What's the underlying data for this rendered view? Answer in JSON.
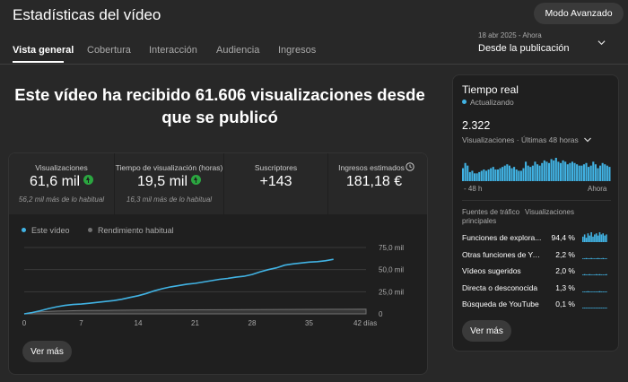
{
  "header": {
    "title": "Estadísticas del vídeo",
    "advanced_button": "Modo Avanzado"
  },
  "tabs": [
    {
      "label": "Vista general",
      "active": true
    },
    {
      "label": "Cobertura",
      "active": false
    },
    {
      "label": "Interacción",
      "active": false
    },
    {
      "label": "Audiencia",
      "active": false
    },
    {
      "label": "Ingresos",
      "active": false
    }
  ],
  "date_range": {
    "small": "18 abr 2025 - Ahora",
    "main": "Desde la publicación"
  },
  "headline": "Este vídeo ha recibido 61.606 visualizaciones desde que se publicó",
  "metrics": [
    {
      "label": "Visualizaciones",
      "value": "61,6 mil",
      "trend": "up",
      "sub": "56,2 mil más de lo habitual"
    },
    {
      "label": "Tiempo de visualización (horas)",
      "value": "19,5 mil",
      "trend": "up",
      "sub": "16,3 mil más de lo habitual"
    },
    {
      "label": "Suscriptores",
      "value": "+143",
      "trend": "",
      "sub": ""
    },
    {
      "label": "Ingresos estimados",
      "value": "181,18 €",
      "trend": "",
      "sub": ""
    }
  ],
  "legend": {
    "this_video": "Este vídeo",
    "typical": "Rendimiento habitual"
  },
  "colors": {
    "accent": "#41b3e4",
    "typical": "#717171",
    "up": "#2ba640"
  },
  "chart_data": {
    "type": "line",
    "x_ticks": [
      "0",
      "7",
      "14",
      "21",
      "28",
      "35",
      "42 días"
    ],
    "y_ticks": [
      "75,0 mil",
      "50,0 mil",
      "25,0 mil",
      "0"
    ],
    "xlim": [
      0,
      42
    ],
    "ylim": [
      0,
      75000
    ],
    "series": [
      {
        "name": "Este vídeo",
        "x": [
          0,
          1,
          2,
          3,
          4,
          5,
          6,
          7,
          8,
          9,
          10,
          11,
          12,
          13,
          14,
          15,
          16,
          17,
          18,
          19,
          20,
          21,
          22,
          23,
          24,
          25,
          26,
          27,
          28,
          29,
          30,
          31,
          32,
          33,
          34,
          35,
          36,
          37,
          38
        ],
        "y": [
          0,
          1500,
          3500,
          6000,
          8000,
          9500,
          10500,
          11000,
          12000,
          13000,
          14000,
          15000,
          16500,
          18500,
          20500,
          23000,
          26000,
          28500,
          30500,
          32000,
          33500,
          34500,
          36000,
          37500,
          39000,
          40000,
          41500,
          42500,
          44500,
          47500,
          50000,
          52000,
          55000,
          56500,
          57500,
          58500,
          59000,
          60000,
          61600
        ]
      },
      {
        "name": "Rendimiento habitual",
        "x": [
          0,
          1,
          2,
          3,
          4,
          5,
          6,
          7,
          10,
          14,
          21,
          28,
          35,
          38,
          42
        ],
        "y": [
          0,
          1500,
          2300,
          2800,
          3100,
          3300,
          3500,
          3700,
          4000,
          4300,
          4600,
          4900,
          5100,
          5200,
          5300
        ]
      }
    ]
  },
  "more_button": "Ver más",
  "realtime": {
    "title": "Tiempo real",
    "status": "Actualizando",
    "value": "2.322",
    "value_label": "Visualizaciones · Últimas 48 horas",
    "chart_data": {
      "type": "bar",
      "x_labels": [
        "- 48 h",
        "Ahora"
      ],
      "values": [
        10,
        14,
        12,
        7,
        8,
        6,
        6,
        7,
        8,
        9,
        8,
        9,
        10,
        11,
        9,
        9,
        10,
        11,
        12,
        13,
        12,
        10,
        11,
        9,
        8,
        8,
        10,
        15,
        12,
        11,
        12,
        15,
        13,
        12,
        14,
        16,
        15,
        14,
        17,
        16,
        18,
        15,
        14,
        16,
        15,
        13,
        14,
        15,
        14,
        13,
        12,
        12,
        13,
        14,
        11,
        12,
        15,
        13,
        10,
        12,
        14,
        13,
        12,
        11
      ]
    },
    "table_header_source": "Fuentes de tráfico principales",
    "table_header_views": "Visualizaciones",
    "sources": [
      {
        "name": "Funciones de explora...",
        "pct": "94,4 %",
        "spark": [
          5,
          7,
          4,
          8,
          6,
          9,
          5,
          7,
          8,
          6,
          9,
          7,
          8,
          6,
          7
        ]
      },
      {
        "name": "Otras funciones de Yo...",
        "pct": "2,2 %",
        "spark": [
          0,
          0,
          1,
          0,
          0,
          1,
          0,
          0,
          0,
          1,
          0,
          0,
          1,
          0,
          0
        ]
      },
      {
        "name": "Vídeos sugeridos",
        "pct": "2,0 %",
        "spark": [
          0,
          1,
          0,
          0,
          1,
          0,
          0,
          0,
          1,
          0,
          1,
          0,
          0,
          0,
          1
        ]
      },
      {
        "name": "Directa o desconocida",
        "pct": "1,3 %",
        "spark": [
          0,
          0,
          0,
          1,
          0,
          0,
          0,
          0,
          0,
          0,
          1,
          0,
          0,
          0,
          0
        ]
      },
      {
        "name": "Búsqueda de YouTube",
        "pct": "0,1 %",
        "spark": [
          0,
          0,
          0,
          0,
          0,
          0,
          0,
          0,
          0,
          0,
          0,
          0,
          0,
          0,
          0
        ]
      }
    ],
    "more_button": "Ver más"
  }
}
